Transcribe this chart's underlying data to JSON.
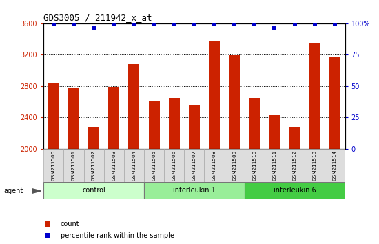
{
  "title": "GDS3005 / 211942_x_at",
  "samples": [
    "GSM211500",
    "GSM211501",
    "GSM211502",
    "GSM211503",
    "GSM211504",
    "GSM211505",
    "GSM211506",
    "GSM211507",
    "GSM211508",
    "GSM211509",
    "GSM211510",
    "GSM211511",
    "GSM211512",
    "GSM211513",
    "GSM211514"
  ],
  "counts": [
    2840,
    2770,
    2280,
    2790,
    3080,
    2610,
    2650,
    2560,
    3370,
    3190,
    2650,
    2430,
    2280,
    3340,
    3175
  ],
  "percentile_ranks": [
    100,
    100,
    96,
    100,
    100,
    100,
    100,
    100,
    100,
    100,
    100,
    96,
    100,
    100,
    100
  ],
  "groups": [
    "control",
    "control",
    "control",
    "control",
    "control",
    "interleukin 1",
    "interleukin 1",
    "interleukin 1",
    "interleukin 1",
    "interleukin 1",
    "interleukin 6",
    "interleukin 6",
    "interleukin 6",
    "interleukin 6",
    "interleukin 6"
  ],
  "group_colors": {
    "control": "#ccffcc",
    "interleukin 1": "#99ee99",
    "interleukin 6": "#44cc44"
  },
  "bar_color": "#cc2200",
  "dot_color": "#0000cc",
  "ylim_left": [
    2000,
    3600
  ],
  "ylim_right": [
    0,
    100
  ],
  "yticks_left": [
    2000,
    2400,
    2800,
    3200,
    3600
  ],
  "yticks_right": [
    0,
    25,
    50,
    75,
    100
  ],
  "tick_label_color_left": "#cc2200",
  "tick_label_color_right": "#0000cc",
  "agent_label": "agent",
  "legend_count_label": "count",
  "legend_pct_label": "percentile rank within the sample"
}
